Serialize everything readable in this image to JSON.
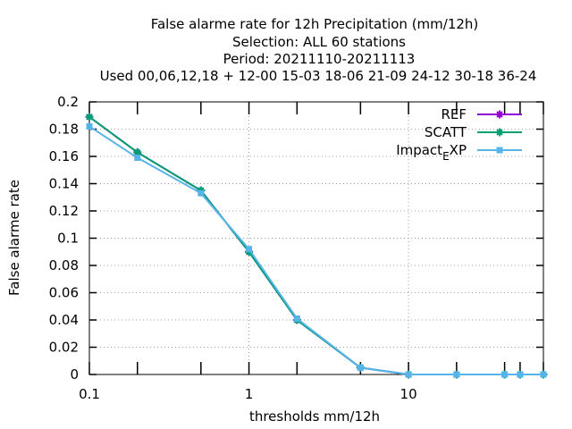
{
  "chart_data": {
    "type": "line",
    "title_lines": [
      "False alarme rate  for 12h Precipitation (mm/12h)",
      "Selection: ALL     60 stations",
      "Period: 20211110-20211113",
      "Used  00,06,12,18  + 12-00 15-03 18-06 21-09 24-12 30-18 36-24"
    ],
    "xlabel": "thresholds mm/12h",
    "ylabel": "False alarme rate",
    "x_scale": "log",
    "xlim": [
      0.1,
      70
    ],
    "ylim": [
      0,
      0.2
    ],
    "x_tick_labels": [
      "0.1",
      "1",
      "10"
    ],
    "y_tick_labels": [
      "0",
      "0.02",
      "0.04",
      "0.06",
      "0.08",
      "0.1",
      "0.12",
      "0.14",
      "0.16",
      "0.18",
      "0.2"
    ],
    "grid": true,
    "legend_position": "top-right",
    "x": [
      0.1,
      0.2,
      0.5,
      1,
      2,
      5,
      10,
      20,
      40,
      50,
      70
    ],
    "series": [
      {
        "name": "REF",
        "color": "#9400d3",
        "marker": "plus",
        "values": [
          0.189,
          0.163,
          0.135,
          0.09,
          0.04,
          0.005,
          0.0,
          0.0,
          0.0,
          0.0,
          0.0
        ]
      },
      {
        "name": "SCATT",
        "color": "#009e73",
        "marker": "plus",
        "values": [
          0.189,
          0.163,
          0.135,
          0.09,
          0.04,
          0.005,
          0.0,
          0.0,
          0.0,
          0.0,
          0.0
        ]
      },
      {
        "name": "Impact_EXP",
        "color": "#56b4e9",
        "marker": "square",
        "values": [
          0.182,
          0.159,
          0.133,
          0.092,
          0.041,
          0.005,
          0.0,
          0.0,
          0.0,
          0.0,
          0.0
        ]
      }
    ]
  }
}
